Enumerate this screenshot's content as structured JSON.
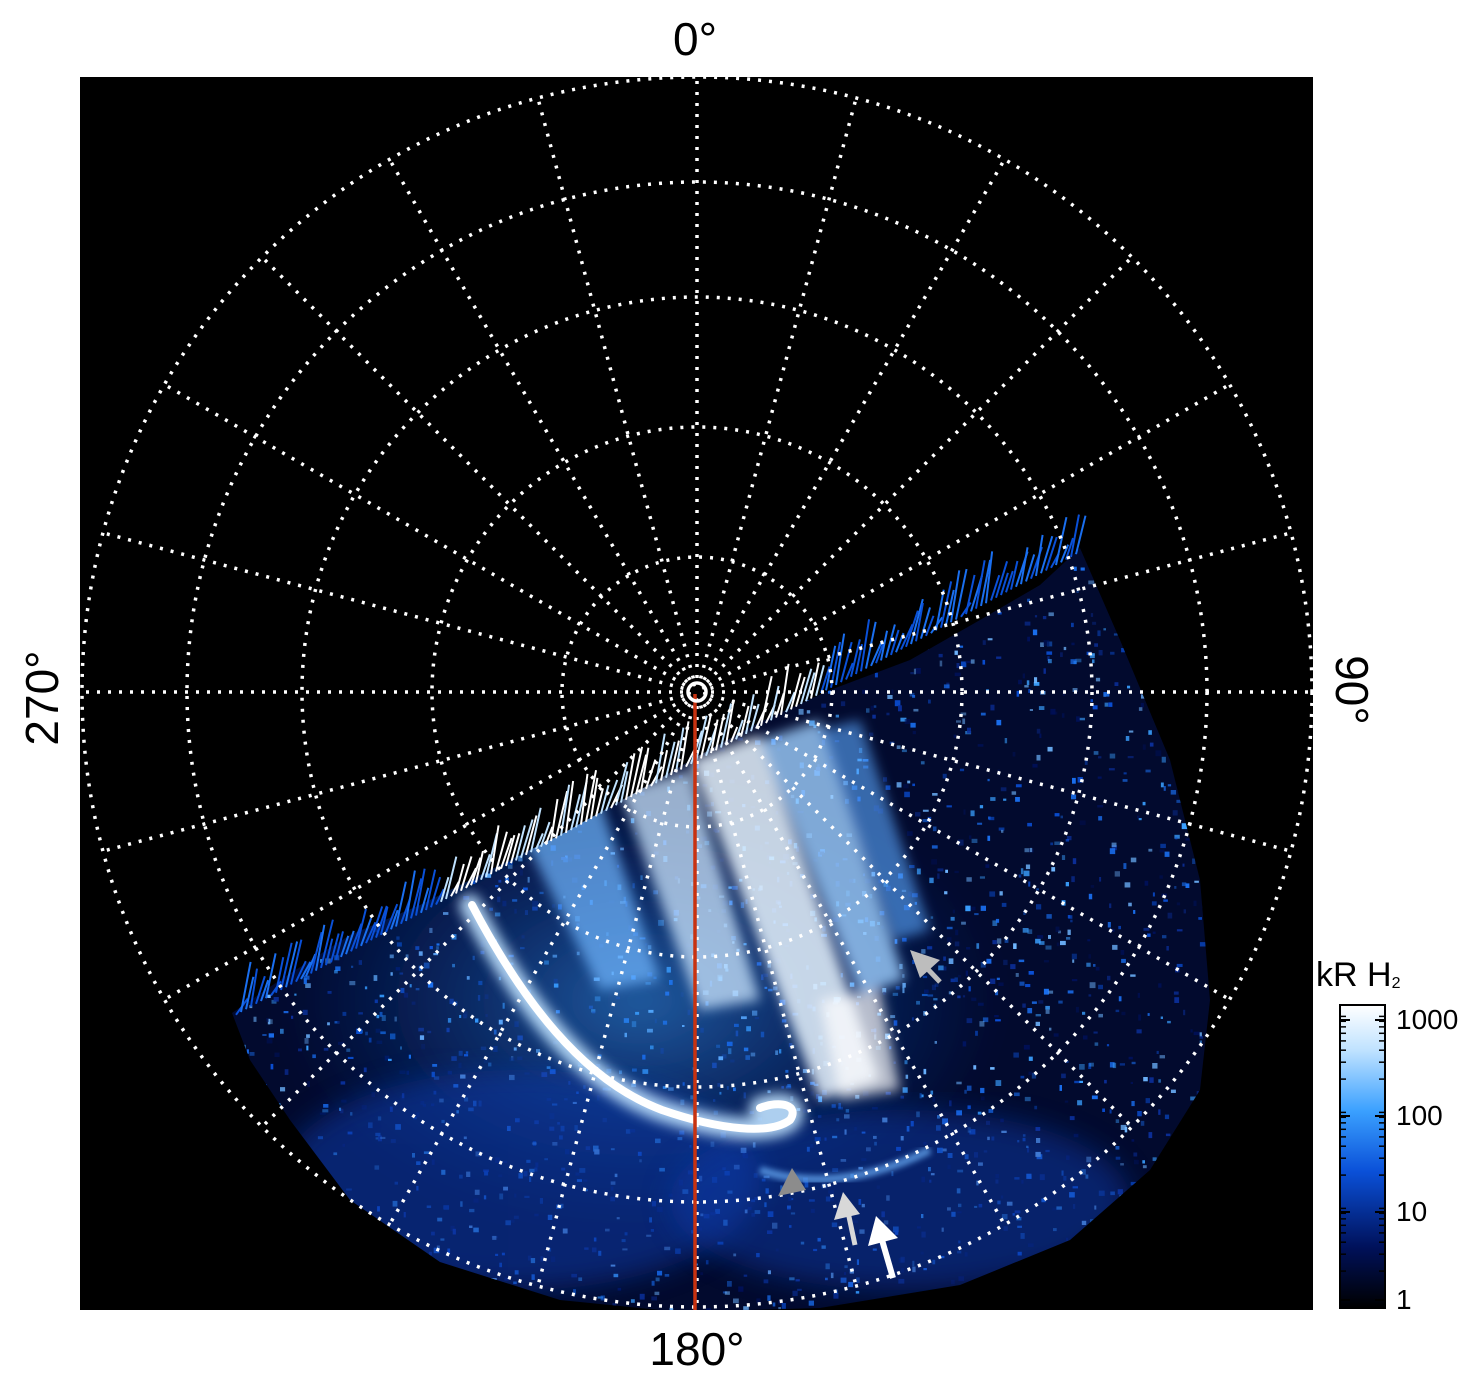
{
  "axes": {
    "top": "0°",
    "bottom": "180°",
    "left": "270°",
    "right": "90°"
  },
  "colorbar": {
    "title": "kR H",
    "title_sub": "2",
    "ticks": [
      "1000",
      "100",
      "10",
      "1"
    ],
    "scale": "log",
    "range": [
      1,
      1500
    ],
    "colors": [
      "#000000",
      "#00115a",
      "#0a50d8",
      "#3aa0ff",
      "#bfe2ff",
      "#ffffff"
    ]
  },
  "image": {
    "background": "#000000",
    "grid_color": "#ffffff",
    "meridian_color": "#c83210",
    "arrow_colors": [
      "#bdbdbd",
      "#8c8c8c",
      "#d8d8d8",
      "#ffffff"
    ]
  }
}
